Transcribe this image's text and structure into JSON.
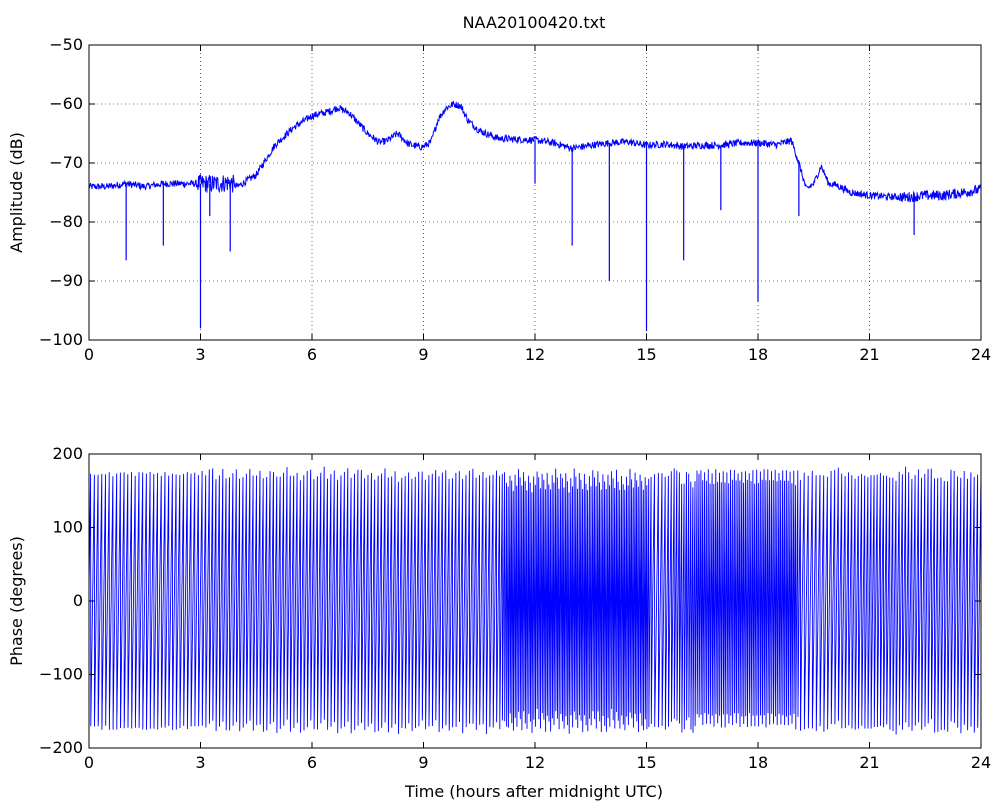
{
  "title": "NAA20100420.txt",
  "chart_data": [
    {
      "type": "line",
      "name": "amplitude",
      "xlabel": "",
      "ylabel": "Amplitude (dB)",
      "xlim": [
        0,
        24
      ],
      "ylim": [
        -100,
        -50
      ],
      "xticks": [
        0,
        3,
        6,
        9,
        12,
        15,
        18,
        21,
        24
      ],
      "yticks": [
        -100,
        -90,
        -80,
        -70,
        -60,
        -50
      ],
      "grid": true,
      "line_color": "#0000ff",
      "x": [
        0.0,
        0.5,
        1.0,
        1.5,
        2.0,
        2.5,
        3.0,
        3.5,
        3.8,
        4.0,
        4.5,
        5.0,
        5.5,
        6.0,
        6.5,
        6.7,
        7.0,
        7.5,
        7.8,
        8.0,
        8.3,
        8.6,
        8.9,
        9.0,
        9.2,
        9.4,
        9.6,
        9.8,
        10.0,
        10.2,
        10.5,
        10.8,
        11.0,
        11.5,
        12.0,
        12.5,
        13.0,
        13.5,
        14.0,
        14.5,
        15.0,
        15.5,
        16.0,
        16.5,
        17.0,
        17.5,
        18.0,
        18.5,
        18.9,
        19.1,
        19.3,
        19.5,
        19.7,
        19.9,
        20.1,
        20.5,
        21.0,
        21.5,
        22.0,
        22.5,
        23.0,
        23.5,
        24.0
      ],
      "y": [
        -74,
        -74,
        -73.5,
        -74,
        -73.5,
        -73.5,
        -73.5,
        -73.5,
        -73.3,
        -74,
        -72,
        -67,
        -64,
        -62,
        -61.2,
        -60.6,
        -61.5,
        -65,
        -66.5,
        -66.3,
        -65,
        -66.8,
        -67.3,
        -67.2,
        -66.5,
        -62.5,
        -60.7,
        -60,
        -60.3,
        -62.8,
        -64.5,
        -65.3,
        -65.8,
        -66,
        -66.1,
        -66.6,
        -67.5,
        -67,
        -66.6,
        -66.4,
        -67,
        -66.8,
        -67.2,
        -67,
        -67,
        -66.6,
        -66.6,
        -66.9,
        -66.2,
        -70,
        -74.5,
        -73.5,
        -70.5,
        -73.5,
        -73.7,
        -75,
        -75.5,
        -75.7,
        -75.8,
        -75.5,
        -75.5,
        -75,
        -74.5
      ],
      "dips": [
        {
          "x": 1.0,
          "y": -86.5
        },
        {
          "x": 2.0,
          "y": -84
        },
        {
          "x": 3.0,
          "y": -98
        },
        {
          "x": 3.25,
          "y": -79
        },
        {
          "x": 3.8,
          "y": -85
        },
        {
          "x": 12.0,
          "y": -73.5
        },
        {
          "x": 13.0,
          "y": -84
        },
        {
          "x": 14.0,
          "y": -90
        },
        {
          "x": 15.0,
          "y": -98.5
        },
        {
          "x": 16.0,
          "y": -86.5
        },
        {
          "x": 17.0,
          "y": -78
        },
        {
          "x": 18.0,
          "y": -93.5
        },
        {
          "x": 19.1,
          "y": -79
        },
        {
          "x": 22.2,
          "y": -82.2
        }
      ]
    },
    {
      "type": "line",
      "name": "phase",
      "xlabel": "Time (hours after midnight UTC)",
      "ylabel": "Phase (degrees)",
      "xlim": [
        0,
        24
      ],
      "ylim": [
        -200,
        200
      ],
      "xticks": [
        0,
        3,
        6,
        9,
        12,
        15,
        18,
        21,
        24
      ],
      "yticks": [
        -200,
        -100,
        0,
        100,
        200
      ],
      "grid": false,
      "line_color": "#0000ff",
      "phase_min": -180,
      "phase_max": 180,
      "wrap_frequency_cycles_per_hour": [
        {
          "x": 0,
          "f": 10
        },
        {
          "x": 3,
          "f": 10
        },
        {
          "x": 3.3,
          "f": 11
        },
        {
          "x": 11,
          "f": 11
        },
        {
          "x": 11.3,
          "f": 22
        },
        {
          "x": 15,
          "f": 22
        },
        {
          "x": 15.2,
          "f": 9
        },
        {
          "x": 16.5,
          "f": 20
        },
        {
          "x": 19,
          "f": 20
        },
        {
          "x": 19.2,
          "f": 9
        },
        {
          "x": 21,
          "f": 12
        },
        {
          "x": 24,
          "f": 11
        }
      ]
    }
  ]
}
